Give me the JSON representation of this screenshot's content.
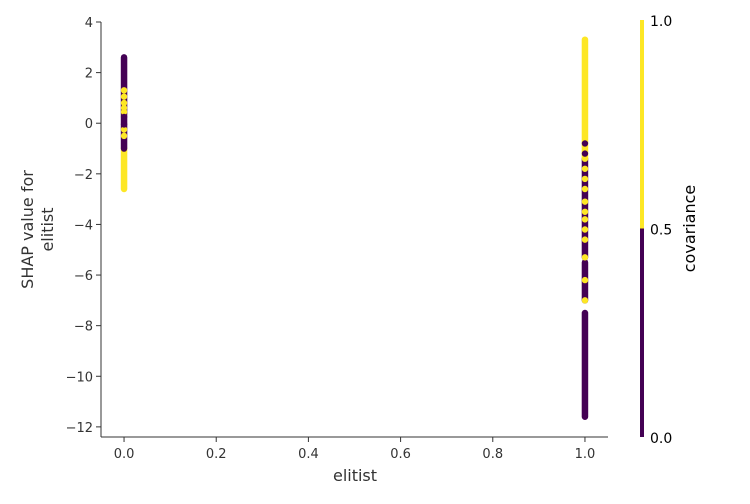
{
  "chart_data": {
    "type": "scatter",
    "title": "",
    "xlabel": "elitist",
    "ylabel_lines": [
      "SHAP value for",
      "elitist"
    ],
    "xlim": [
      -0.05,
      1.05
    ],
    "ylim": [
      -12.4,
      4.0
    ],
    "x_ticks": [
      0.0,
      0.2,
      0.4,
      0.6,
      0.8,
      1.0
    ],
    "x_tick_labels": [
      "0.0",
      "0.2",
      "0.4",
      "0.6",
      "0.8",
      "1.0"
    ],
    "y_ticks": [
      4,
      2,
      0,
      -2,
      -4,
      -6,
      -8,
      -10,
      -12
    ],
    "y_tick_labels": [
      "4",
      "2",
      "0",
      "−2",
      "−4",
      "−6",
      "−8",
      "−10",
      "−12"
    ],
    "colorbar": {
      "label": "covariance",
      "ticks": [
        0.0,
        0.5,
        1.0
      ],
      "tick_labels": [
        "0.0",
        "0.5",
        "1.0"
      ],
      "low_color": "#440154",
      "high_color": "#fde725",
      "split_value": 0.5
    },
    "series": [
      {
        "x": 0.0,
        "segments": [
          {
            "covariance": 1,
            "y_from": -2.6,
            "y_to": -1.0
          },
          {
            "covariance": 0,
            "y_from": -1.0,
            "y_to": 2.6
          }
        ],
        "points": [
          {
            "covariance": 1,
            "y": -0.5
          },
          {
            "covariance": 1,
            "y": -0.25
          },
          {
            "covariance": 1,
            "y": 0.45
          },
          {
            "covariance": 1,
            "y": 0.6
          },
          {
            "covariance": 1,
            "y": 0.8
          },
          {
            "covariance": 1,
            "y": 1.05
          },
          {
            "covariance": 1,
            "y": 1.3
          },
          {
            "covariance": 0,
            "y": -0.05
          },
          {
            "covariance": 0,
            "y": 0.25
          }
        ]
      },
      {
        "x": 1.0,
        "segments": [
          {
            "covariance": 0,
            "y_from": -11.6,
            "y_to": -7.5
          },
          {
            "covariance": 0,
            "y_from": -7.0,
            "y_to": -5.5
          },
          {
            "covariance": 0,
            "y_from": -5.3,
            "y_to": -1.4
          },
          {
            "covariance": 1,
            "y_from": -1.4,
            "y_to": 3.3
          }
        ],
        "points": [
          {
            "covariance": 1,
            "y": -7.0
          },
          {
            "covariance": 1,
            "y": -6.2
          },
          {
            "covariance": 1,
            "y": -5.3
          },
          {
            "covariance": 1,
            "y": -4.6
          },
          {
            "covariance": 1,
            "y": -4.2
          },
          {
            "covariance": 1,
            "y": -3.8
          },
          {
            "covariance": 1,
            "y": -3.5
          },
          {
            "covariance": 1,
            "y": -3.1
          },
          {
            "covariance": 1,
            "y": -2.6
          },
          {
            "covariance": 1,
            "y": -2.2
          },
          {
            "covariance": 1,
            "y": -1.8
          },
          {
            "covariance": 0,
            "y": -1.2
          },
          {
            "covariance": 0,
            "y": -0.8
          }
        ]
      }
    ]
  }
}
